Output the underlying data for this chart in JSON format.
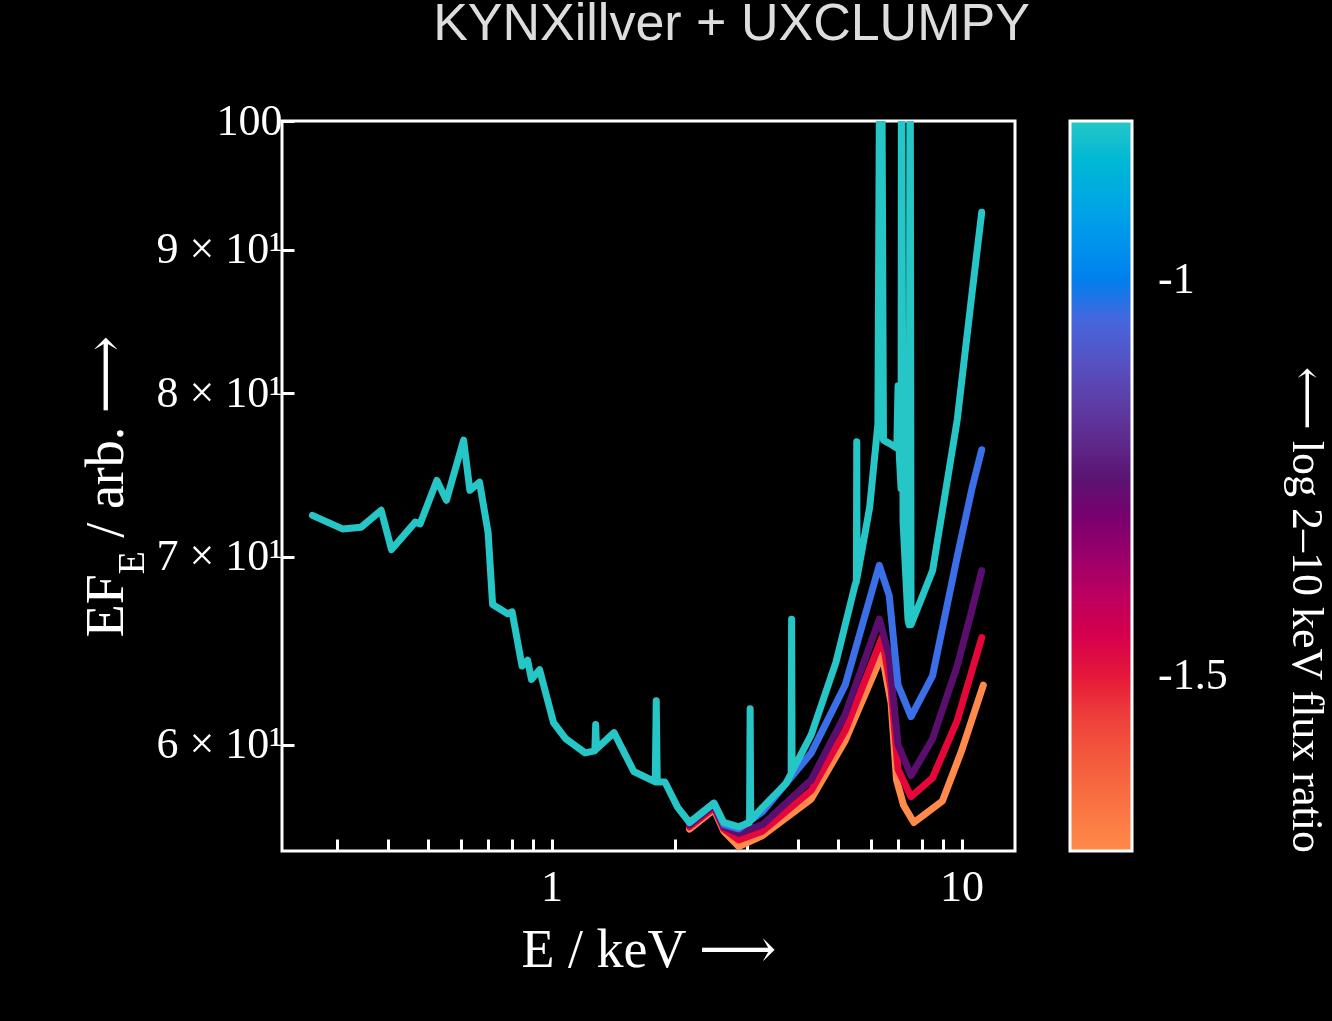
{
  "chart_data": {
    "type": "line",
    "title": "KYNXillver + UXCLUMPY",
    "xlabel": "E / keV ⟶",
    "ylabel": "EF$_{E}$ / arb. ⟶",
    "clabel": "⟵ log 2–10 keV flux ratio",
    "log": "xy",
    "grid": false,
    "marker": "none",
    "line_style": "solid",
    "xlim": [
      0.22,
      13.5
    ],
    "ylim": [
      55,
      100
    ],
    "xticks": [
      {
        "value": 0.3,
        "label": null
      },
      {
        "value": 0.4,
        "label": null
      },
      {
        "value": 0.5,
        "label": null
      },
      {
        "value": 0.6,
        "label": null
      },
      {
        "value": 0.7,
        "label": null
      },
      {
        "value": 0.8,
        "label": null
      },
      {
        "value": 0.9,
        "label": null
      },
      1,
      {
        "value": 2,
        "label": null
      },
      {
        "value": 3,
        "label": null
      },
      {
        "value": 4,
        "label": null
      },
      {
        "value": 5,
        "label": null
      },
      {
        "value": 6,
        "label": null
      },
      {
        "value": 7,
        "label": null
      },
      {
        "value": 8,
        "label": null
      },
      {
        "value": 9,
        "label": null
      },
      10
    ],
    "yticks": [
      {
        "value": 60,
        "label": "6 × 10¹"
      },
      {
        "value": 70,
        "label": "7 × 10¹"
      },
      {
        "value": 80,
        "label": "8 × 10¹"
      },
      {
        "value": 90,
        "label": "9 × 10¹"
      },
      100
    ],
    "clim": [
      -1.72,
      -0.8
    ],
    "cticks": [
      {
        "value": -1.5,
        "label": "-1.5"
      },
      {
        "value": -1,
        "label": "-1"
      }
    ],
    "series": [
      {
        "color": "#ff8a4a",
        "x": [
          2.17,
          2.49,
          2.63,
          2.86,
          3.27,
          4.3,
          5.2,
          6.4,
          6.73,
          6.94,
          7.22,
          7.65,
          8.98,
          10.0,
          11.3
        ],
        "values": [
          56.0,
          56.9,
          55.9,
          55.2,
          55.7,
          57.4,
          60.2,
          64.6,
          62.1,
          58.3,
          57.1,
          56.3,
          57.3,
          59.7,
          63.0
        ]
      },
      {
        "color": "#e5063a",
        "x": [
          2.17,
          2.49,
          2.63,
          2.86,
          3.27,
          4.3,
          5.2,
          6.4,
          6.73,
          7.0,
          7.53,
          8.5,
          9.76,
          11.2
        ],
        "values": [
          56.1,
          57.0,
          56.0,
          55.5,
          55.9,
          57.8,
          60.7,
          65.5,
          62.8,
          58.8,
          57.5,
          58.4,
          61.2,
          65.5
        ]
      },
      {
        "color": "#5a0f6e",
        "x": [
          2.17,
          2.49,
          2.63,
          2.86,
          3.27,
          4.3,
          5.2,
          6.3,
          6.66,
          7.0,
          7.53,
          8.5,
          9.76,
          10.6,
          11.2
        ],
        "values": [
          56.2,
          57.1,
          56.1,
          55.8,
          56.2,
          58.3,
          61.5,
          66.5,
          64.5,
          60.0,
          58.5,
          60.3,
          64.0,
          67.0,
          69.2
        ]
      },
      {
        "color": "#3a6fe8",
        "x": [
          2.17,
          2.49,
          2.63,
          2.86,
          3.27,
          4.3,
          5.2,
          6.3,
          6.66,
          7.0,
          7.53,
          8.5,
          9.76,
          10.6,
          11.2
        ],
        "values": [
          56.3,
          57.2,
          56.2,
          56.0,
          56.8,
          59.6,
          63.0,
          69.5,
          67.8,
          63.0,
          61.4,
          63.5,
          70.0,
          74.0,
          76.4
        ]
      },
      {
        "color": "#26c6c6",
        "x": [
          0.261,
          0.309,
          0.343,
          0.384,
          0.407,
          0.465,
          0.478,
          0.525,
          0.554,
          0.61,
          0.632,
          0.667,
          0.7,
          0.718,
          0.781,
          0.801,
          0.847,
          0.874,
          0.893,
          0.935,
          1.011,
          1.082,
          1.207,
          1.275,
          1.281,
          1.287,
          1.42,
          1.587,
          1.79,
          1.8,
          1.81,
          1.89,
          2.03,
          2.17,
          2.49,
          2.63,
          2.86,
          3.04,
          3.05,
          3.06,
          3.27,
          3.72,
          3.84,
          3.85,
          3.86,
          4.3,
          4.94,
          5.5,
          5.54,
          5.55,
          5.56,
          5.97,
          6.25,
          6.3,
          6.4,
          6.45,
          6.66,
          6.95,
          7.0,
          7.05,
          7.12,
          7.13,
          7.15,
          7.2,
          7.4,
          7.45,
          7.48,
          7.5,
          7.53,
          8.5,
          9.76,
          10.6,
          11.2
        ],
        "values": [
          72.4,
          71.6,
          71.7,
          72.7,
          70.4,
          72.0,
          71.9,
          74.5,
          73.3,
          77.0,
          73.9,
          74.4,
          71.4,
          67.3,
          66.8,
          66.9,
          64.0,
          64.3,
          63.3,
          63.8,
          61.1,
          60.3,
          59.6,
          59.7,
          61.0,
          59.8,
          60.6,
          58.7,
          58.2,
          62.2,
          58.2,
          58.2,
          57.0,
          56.3,
          57.2,
          56.3,
          56.1,
          56.3,
          61.8,
          56.4,
          57.0,
          58.1,
          58.6,
          66.5,
          58.7,
          60.5,
          64.2,
          68.4,
          68.6,
          76.9,
          68.8,
          72.9,
          78.0,
          100,
          100,
          77.0,
          76.8,
          76.5,
          80.5,
          76.0,
          74.0,
          100,
          100,
          72.0,
          66.5,
          66.2,
          100,
          100,
          66.2,
          69.2,
          78.3,
          86.8,
          92.8
        ]
      }
    ]
  }
}
